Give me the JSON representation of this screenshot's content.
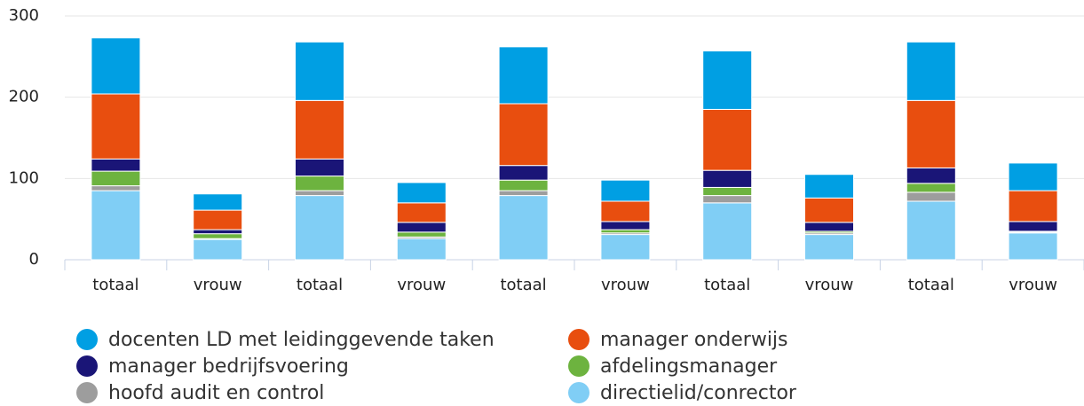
{
  "chart_data": {
    "type": "stacked_bar",
    "categories": [
      "totaal",
      "vrouw",
      "totaal",
      "vrouw",
      "totaal",
      "vrouw",
      "totaal",
      "vrouw",
      "totaal",
      "vrouw"
    ],
    "series": [
      {
        "name": "docenten LD met leidinggevende taken",
        "color": "#009fe3",
        "values": [
          69,
          20,
          72,
          25,
          70,
          26,
          72,
          29,
          72,
          34
        ]
      },
      {
        "name": "manager onderwijs",
        "color": "#e84e0f",
        "values": [
          80,
          24,
          72,
          24,
          76,
          25,
          75,
          30,
          83,
          38
        ]
      },
      {
        "name": "manager bedrijfsvoering",
        "color": "#1a1577",
        "values": [
          15,
          5,
          21,
          12,
          18,
          10,
          21,
          11,
          19,
          12
        ]
      },
      {
        "name": "afdelingsmanager",
        "color": "#6db33f",
        "values": [
          18,
          6,
          18,
          6,
          13,
          4,
          10,
          2,
          11,
          1
        ]
      },
      {
        "name": "hoofd audit en control",
        "color": "#9d9d9d",
        "values": [
          6,
          1,
          6,
          2,
          6,
          2,
          9,
          2,
          11,
          1
        ]
      },
      {
        "name": "directielid/conrector",
        "color": "#80cef5",
        "values": [
          85,
          25,
          79,
          26,
          79,
          31,
          70,
          31,
          72,
          33
        ]
      }
    ],
    "ylim": [
      0,
      300
    ],
    "yticks": [
      0,
      100,
      200,
      300
    ],
    "grid": true
  }
}
